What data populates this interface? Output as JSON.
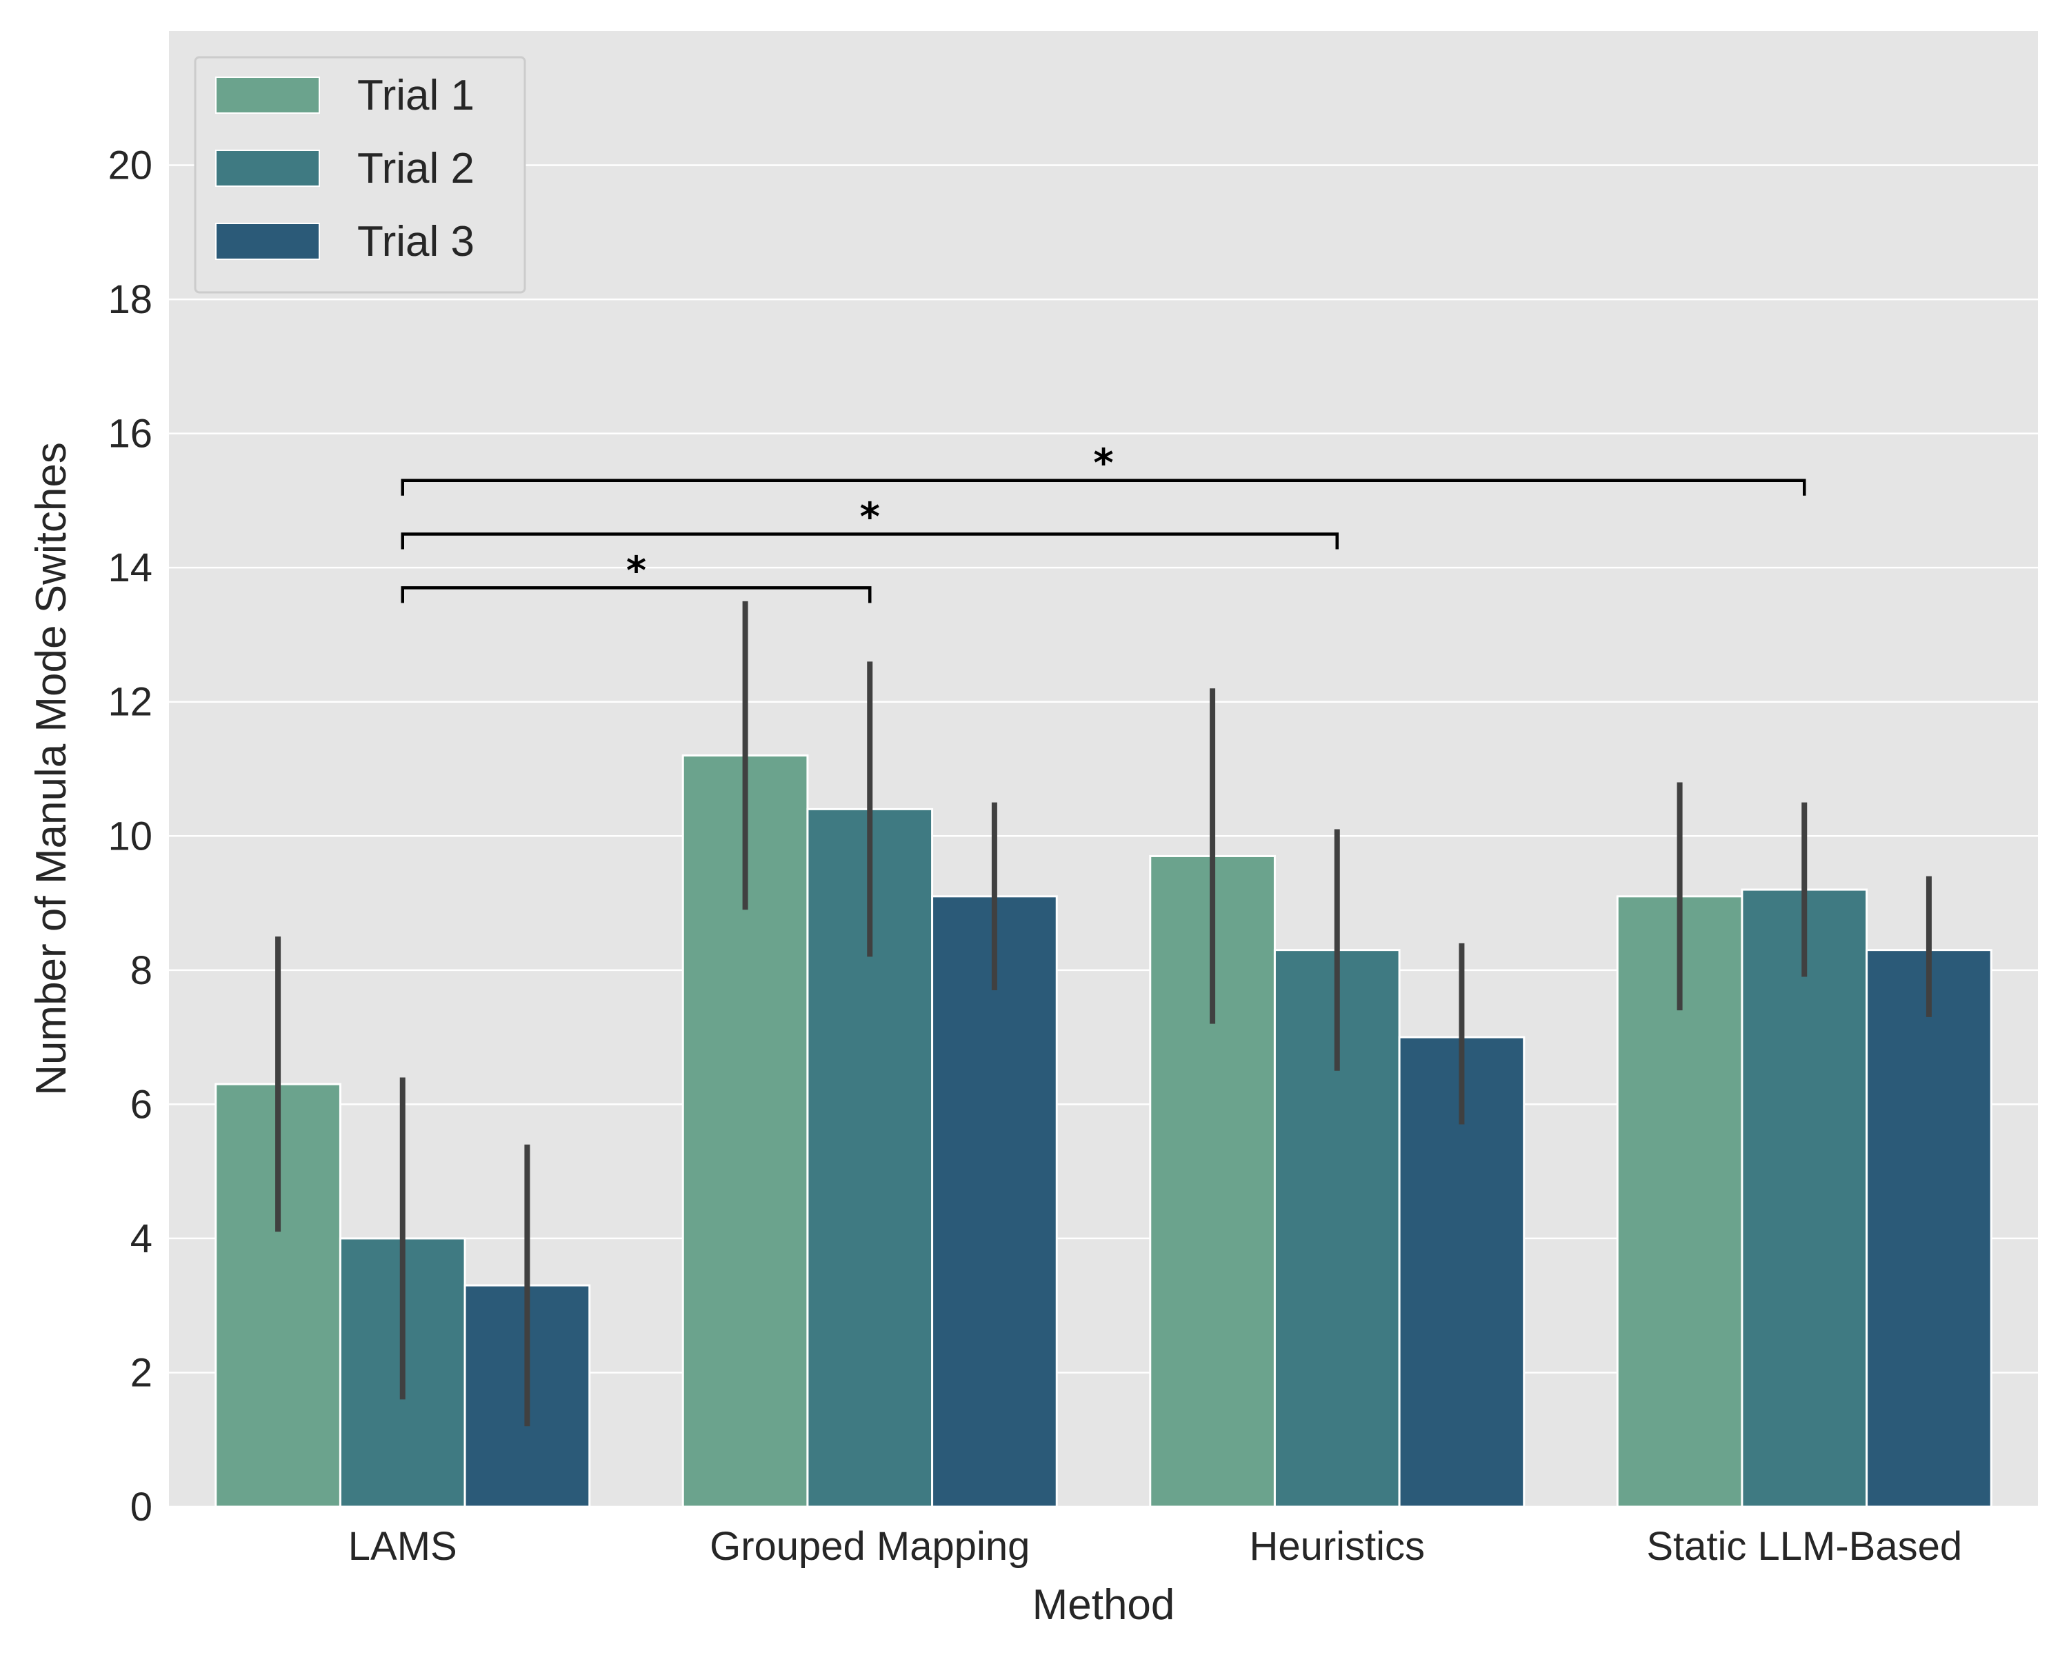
{
  "chart_data": {
    "type": "bar",
    "xlabel": "Method",
    "ylabel": "Number of Manula Mode Switches",
    "categories": [
      "LAMS",
      "Grouped Mapping",
      "Heuristics",
      "Static LLM-Based"
    ],
    "ylim": [
      0,
      22
    ],
    "yticks": [
      0,
      2,
      4,
      6,
      8,
      10,
      12,
      14,
      16,
      18,
      20
    ],
    "grid": true,
    "legend_position": "top-left",
    "series": [
      {
        "name": "Trial 1",
        "color": "#6ba38d",
        "values": [
          6.3,
          11.2,
          9.7,
          9.1
        ],
        "err_low": [
          4.1,
          8.9,
          7.2,
          7.4
        ],
        "err_high": [
          8.5,
          13.5,
          12.2,
          10.8
        ]
      },
      {
        "name": "Trial 2",
        "color": "#3f7a82",
        "values": [
          4.0,
          10.4,
          8.3,
          9.2
        ],
        "err_low": [
          1.6,
          8.2,
          6.5,
          7.9
        ],
        "err_high": [
          6.4,
          12.6,
          10.1,
          10.5
        ]
      },
      {
        "name": "Trial 3",
        "color": "#2b5a78",
        "values": [
          3.3,
          9.1,
          7.0,
          8.3
        ],
        "err_low": [
          1.2,
          7.7,
          5.7,
          7.3
        ],
        "err_high": [
          5.4,
          10.5,
          8.4,
          9.4
        ]
      }
    ],
    "significance": [
      {
        "from": 0,
        "to": 1,
        "y": 13.7,
        "label": "*"
      },
      {
        "from": 0,
        "to": 2,
        "y": 14.5,
        "label": "*"
      },
      {
        "from": 0,
        "to": 3,
        "y": 15.3,
        "label": "*"
      }
    ],
    "colors": {
      "plot_background": "#e5e5e5",
      "grid": "#ffffff",
      "error_bar": "#404040",
      "text": "#262626"
    }
  }
}
